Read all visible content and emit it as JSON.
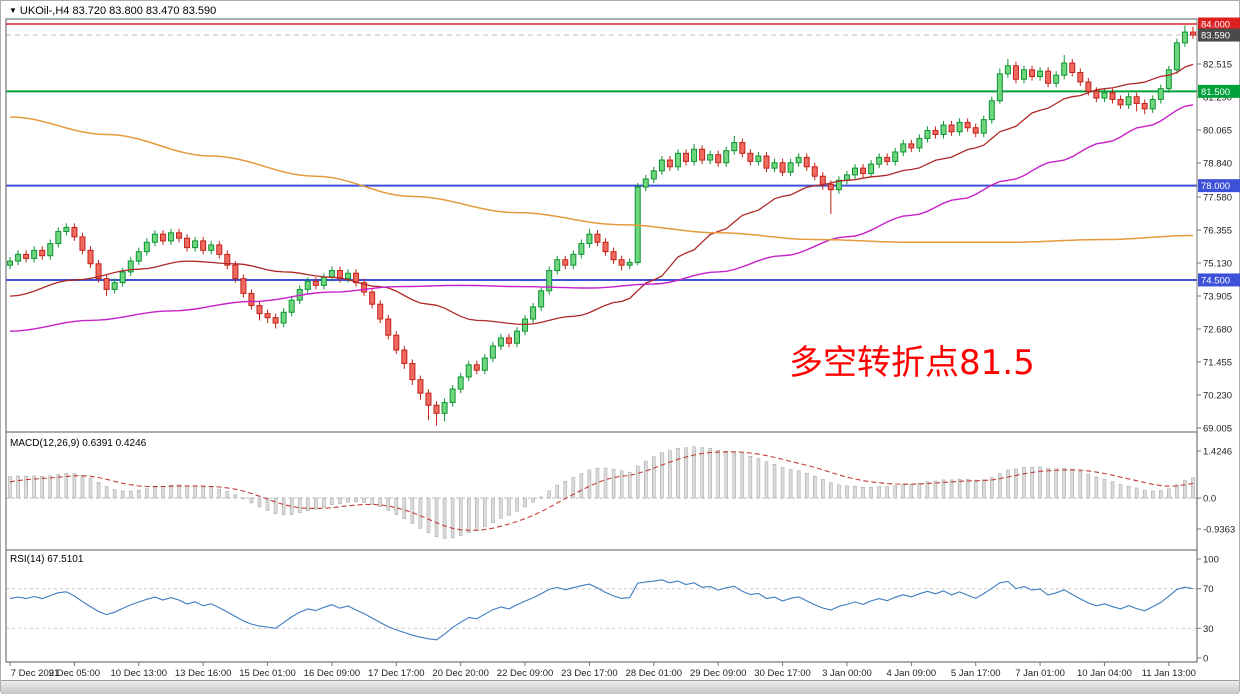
{
  "header": {
    "marker": "▼",
    "title": "UKOil-,H4 83.720 83.800 83.470 83.590"
  },
  "annotation": {
    "text": "多空转折点81.5",
    "color": "#ff0000"
  },
  "chart_data": {
    "type": "candlestick",
    "symbol": "UKOil-",
    "timeframe": "H4",
    "ohlc_display": {
      "open": "83.720",
      "high": "83.800",
      "low": "83.470",
      "close": "83.590"
    },
    "price_range": [
      68.9,
      84.25
    ],
    "grid": "off",
    "price_axis_labels": [
      "82.515",
      "81.290",
      "80.065",
      "78.840",
      "77.580",
      "76.355",
      "75.130",
      "73.905",
      "72.680",
      "71.455",
      "70.230",
      "69.005"
    ],
    "time_axis_labels": [
      "7 Dec 2021",
      "9 Dec 05:00",
      "10 Dec 13:00",
      "13 Dec 16:00",
      "15 Dec 01:00",
      "16 Dec 09:00",
      "17 Dec 17:00",
      "20 Dec 20:00",
      "22 Dec 09:00",
      "23 Dec 17:00",
      "28 Dec 01:00",
      "29 Dec 09:00",
      "30 Dec 17:00",
      "3 Jan 00:00",
      "4 Jan 09:00",
      "5 Jan 17:00",
      "7 Jan 01:00",
      "10 Jan 04:00",
      "11 Jan 13:00"
    ],
    "levels": [
      {
        "label": "84.000",
        "value": 84.0,
        "color": "#dd1f1f",
        "line_width": 1.4
      },
      {
        "label": "83.590",
        "value": 83.59,
        "color": "#4a4a4a",
        "line_width": 1,
        "dashed": true,
        "line_color": "#bdbdbd",
        "current": true
      },
      {
        "label": "81.500",
        "value": 81.5,
        "color": "#00a13a",
        "line_width": 2
      },
      {
        "label": "78.000",
        "value": 78.0,
        "color": "#3c50d8",
        "line_width": 2
      },
      {
        "label": "74.500",
        "value": 74.5,
        "color": "#3c50d8",
        "line_width": 2
      }
    ],
    "candle_colors": {
      "up_fill": "#6fd57e",
      "up_stroke": "#0f9432",
      "down_fill": "#ef6a60",
      "down_stroke": "#c32218"
    },
    "candles": [
      [
        75.05,
        75.35,
        74.9,
        75.2
      ],
      [
        75.2,
        75.6,
        75.05,
        75.45
      ],
      [
        75.45,
        75.6,
        75.15,
        75.3
      ],
      [
        75.3,
        75.75,
        75.15,
        75.6
      ],
      [
        75.6,
        75.75,
        75.25,
        75.4
      ],
      [
        75.4,
        76.0,
        75.25,
        75.85
      ],
      [
        75.85,
        76.45,
        75.7,
        76.3
      ],
      [
        76.3,
        76.6,
        76.15,
        76.45
      ],
      [
        76.45,
        76.6,
        75.95,
        76.1
      ],
      [
        76.1,
        76.25,
        75.45,
        75.6
      ],
      [
        75.6,
        75.75,
        74.95,
        75.1
      ],
      [
        75.1,
        75.25,
        74.4,
        74.55
      ],
      [
        74.55,
        74.7,
        73.9,
        74.15
      ],
      [
        74.15,
        74.55,
        74.0,
        74.4
      ],
      [
        74.4,
        74.95,
        74.25,
        74.8
      ],
      [
        74.8,
        75.35,
        74.65,
        75.2
      ],
      [
        75.2,
        75.7,
        75.05,
        75.55
      ],
      [
        75.55,
        76.05,
        75.4,
        75.9
      ],
      [
        75.9,
        76.35,
        75.75,
        76.2
      ],
      [
        76.2,
        76.35,
        75.8,
        75.95
      ],
      [
        75.95,
        76.4,
        75.8,
        76.25
      ],
      [
        76.25,
        76.4,
        75.9,
        76.05
      ],
      [
        76.05,
        76.2,
        75.55,
        75.7
      ],
      [
        75.7,
        76.1,
        75.55,
        75.95
      ],
      [
        75.95,
        76.1,
        75.45,
        75.6
      ],
      [
        75.6,
        75.95,
        75.45,
        75.8
      ],
      [
        75.8,
        75.95,
        75.3,
        75.45
      ],
      [
        75.45,
        75.6,
        74.9,
        75.05
      ],
      [
        75.05,
        75.2,
        74.4,
        74.55
      ],
      [
        74.55,
        74.7,
        73.85,
        74.0
      ],
      [
        74.0,
        74.15,
        73.4,
        73.55
      ],
      [
        73.55,
        73.7,
        73.0,
        73.25
      ],
      [
        73.25,
        73.4,
        72.9,
        73.1
      ],
      [
        73.1,
        73.25,
        72.7,
        72.9
      ],
      [
        72.9,
        73.45,
        72.75,
        73.3
      ],
      [
        73.3,
        73.9,
        73.15,
        73.75
      ],
      [
        73.75,
        74.3,
        73.6,
        74.15
      ],
      [
        74.15,
        74.6,
        74.0,
        74.45
      ],
      [
        74.45,
        74.6,
        74.15,
        74.3
      ],
      [
        74.3,
        74.75,
        74.15,
        74.6
      ],
      [
        74.6,
        75.0,
        74.45,
        74.85
      ],
      [
        74.85,
        75.0,
        74.4,
        74.55
      ],
      [
        74.55,
        74.9,
        74.4,
        74.75
      ],
      [
        74.75,
        74.9,
        74.25,
        74.4
      ],
      [
        74.4,
        74.55,
        73.9,
        74.05
      ],
      [
        74.05,
        74.2,
        73.45,
        73.6
      ],
      [
        73.6,
        73.75,
        72.9,
        73.05
      ],
      [
        73.05,
        73.2,
        72.3,
        72.45
      ],
      [
        72.45,
        72.6,
        71.75,
        71.9
      ],
      [
        71.9,
        72.05,
        71.2,
        71.4
      ],
      [
        71.4,
        71.55,
        70.6,
        70.8
      ],
      [
        70.8,
        70.95,
        70.05,
        70.3
      ],
      [
        70.3,
        70.45,
        69.3,
        69.85
      ],
      [
        69.85,
        70.0,
        69.1,
        69.55
      ],
      [
        69.55,
        70.1,
        69.25,
        69.95
      ],
      [
        69.95,
        70.6,
        69.8,
        70.45
      ],
      [
        70.45,
        71.05,
        70.3,
        70.9
      ],
      [
        70.9,
        71.5,
        70.75,
        71.35
      ],
      [
        71.35,
        71.5,
        71.0,
        71.15
      ],
      [
        71.15,
        71.75,
        71.0,
        71.6
      ],
      [
        71.6,
        72.2,
        71.45,
        72.05
      ],
      [
        72.05,
        72.5,
        71.9,
        72.35
      ],
      [
        72.35,
        72.5,
        72.0,
        72.15
      ],
      [
        72.15,
        72.75,
        72.0,
        72.6
      ],
      [
        72.6,
        73.2,
        72.45,
        73.05
      ],
      [
        73.05,
        73.65,
        72.9,
        73.5
      ],
      [
        73.5,
        74.25,
        73.35,
        74.1
      ],
      [
        74.1,
        75.0,
        73.95,
        74.85
      ],
      [
        74.85,
        75.4,
        74.7,
        75.25
      ],
      [
        75.25,
        75.4,
        74.9,
        75.05
      ],
      [
        75.05,
        75.6,
        74.9,
        75.45
      ],
      [
        75.45,
        76.0,
        75.3,
        75.85
      ],
      [
        75.85,
        76.4,
        75.7,
        76.2
      ],
      [
        76.2,
        76.35,
        75.75,
        75.9
      ],
      [
        75.9,
        76.05,
        75.4,
        75.55
      ],
      [
        75.55,
        75.7,
        75.1,
        75.25
      ],
      [
        75.25,
        75.4,
        74.85,
        75.05
      ],
      [
        75.05,
        75.3,
        74.9,
        75.15
      ],
      [
        75.15,
        78.1,
        75.05,
        77.95
      ],
      [
        77.95,
        78.4,
        77.8,
        78.25
      ],
      [
        78.25,
        78.7,
        78.1,
        78.55
      ],
      [
        78.55,
        79.1,
        78.4,
        78.95
      ],
      [
        78.95,
        79.1,
        78.55,
        78.7
      ],
      [
        78.7,
        79.35,
        78.55,
        79.2
      ],
      [
        79.2,
        79.35,
        78.75,
        78.9
      ],
      [
        78.9,
        79.55,
        78.75,
        79.35
      ],
      [
        79.35,
        79.5,
        78.8,
        78.95
      ],
      [
        78.95,
        79.3,
        78.8,
        79.15
      ],
      [
        79.15,
        79.3,
        78.7,
        78.85
      ],
      [
        78.85,
        79.45,
        78.7,
        79.3
      ],
      [
        79.3,
        79.85,
        79.15,
        79.6
      ],
      [
        79.6,
        79.75,
        79.05,
        79.2
      ],
      [
        79.2,
        79.35,
        78.75,
        78.9
      ],
      [
        78.9,
        79.25,
        78.75,
        79.1
      ],
      [
        79.1,
        79.25,
        78.5,
        78.65
      ],
      [
        78.65,
        79.0,
        78.5,
        78.85
      ],
      [
        78.85,
        79.0,
        78.35,
        78.5
      ],
      [
        78.5,
        79.0,
        78.35,
        78.85
      ],
      [
        78.85,
        79.2,
        78.7,
        79.05
      ],
      [
        79.05,
        79.2,
        78.55,
        78.7
      ],
      [
        78.7,
        78.85,
        78.2,
        78.35
      ],
      [
        78.35,
        78.5,
        77.85,
        78.05
      ],
      [
        78.05,
        78.2,
        76.95,
        77.85
      ],
      [
        77.85,
        78.35,
        77.7,
        78.2
      ],
      [
        78.2,
        78.55,
        78.05,
        78.4
      ],
      [
        78.4,
        78.8,
        78.25,
        78.65
      ],
      [
        78.65,
        78.8,
        78.3,
        78.45
      ],
      [
        78.45,
        78.95,
        78.3,
        78.8
      ],
      [
        78.8,
        79.2,
        78.65,
        79.05
      ],
      [
        79.05,
        79.2,
        78.75,
        78.9
      ],
      [
        78.9,
        79.4,
        78.75,
        79.25
      ],
      [
        79.25,
        79.7,
        79.1,
        79.55
      ],
      [
        79.55,
        79.7,
        79.25,
        79.4
      ],
      [
        79.4,
        79.9,
        79.25,
        79.75
      ],
      [
        79.75,
        80.2,
        79.6,
        80.05
      ],
      [
        80.05,
        80.2,
        79.75,
        79.9
      ],
      [
        79.9,
        80.4,
        79.75,
        80.25
      ],
      [
        80.25,
        80.4,
        79.85,
        80.0
      ],
      [
        80.0,
        80.5,
        79.85,
        80.35
      ],
      [
        80.35,
        80.5,
        80.0,
        80.15
      ],
      [
        80.15,
        80.3,
        79.8,
        79.95
      ],
      [
        79.95,
        80.6,
        79.8,
        80.45
      ],
      [
        80.45,
        81.3,
        80.3,
        81.15
      ],
      [
        81.15,
        82.35,
        81.05,
        82.15
      ],
      [
        82.15,
        82.7,
        82.0,
        82.45
      ],
      [
        82.45,
        82.6,
        81.8,
        81.95
      ],
      [
        81.95,
        82.45,
        81.8,
        82.3
      ],
      [
        82.3,
        82.45,
        81.9,
        82.05
      ],
      [
        82.05,
        82.4,
        81.9,
        82.25
      ],
      [
        82.25,
        82.4,
        81.65,
        81.8
      ],
      [
        81.8,
        82.25,
        81.65,
        82.1
      ],
      [
        82.1,
        82.85,
        81.95,
        82.55
      ],
      [
        82.55,
        82.7,
        82.05,
        82.2
      ],
      [
        82.2,
        82.35,
        81.7,
        81.85
      ],
      [
        81.85,
        82.0,
        81.35,
        81.5
      ],
      [
        81.5,
        81.65,
        81.1,
        81.25
      ],
      [
        81.25,
        81.6,
        81.1,
        81.45
      ],
      [
        81.45,
        81.6,
        81.05,
        81.2
      ],
      [
        81.2,
        81.35,
        80.85,
        81.0
      ],
      [
        81.0,
        81.45,
        80.85,
        81.3
      ],
      [
        81.3,
        81.45,
        80.75,
        81.05
      ],
      [
        81.05,
        81.2,
        80.65,
        80.85
      ],
      [
        80.85,
        81.35,
        80.7,
        81.2
      ],
      [
        81.2,
        81.75,
        81.05,
        81.6
      ],
      [
        81.6,
        82.45,
        81.45,
        82.3
      ],
      [
        82.3,
        83.45,
        82.15,
        83.3
      ],
      [
        83.3,
        83.95,
        83.15,
        83.7
      ],
      [
        83.7,
        83.9,
        83.45,
        83.59
      ]
    ],
    "ma_lines": [
      {
        "name": "ma-medium-red",
        "color": "#b02828",
        "width": 1.3,
        "anchors": [
          [
            0,
            73.9
          ],
          [
            8,
            74.5
          ],
          [
            16,
            74.9
          ],
          [
            22,
            75.2
          ],
          [
            28,
            75.1
          ],
          [
            34,
            74.8
          ],
          [
            40,
            74.6
          ],
          [
            46,
            74.25
          ],
          [
            52,
            73.6
          ],
          [
            58,
            73.0
          ],
          [
            64,
            72.85
          ],
          [
            70,
            73.15
          ],
          [
            76,
            73.7
          ],
          [
            80,
            74.5
          ],
          [
            84,
            75.5
          ],
          [
            88,
            76.3
          ],
          [
            92,
            77.0
          ],
          [
            96,
            77.6
          ],
          [
            100,
            78.0
          ],
          [
            104,
            78.2
          ],
          [
            108,
            78.35
          ],
          [
            112,
            78.6
          ],
          [
            116,
            79.0
          ],
          [
            120,
            79.4
          ],
          [
            124,
            80.1
          ],
          [
            128,
            80.8
          ],
          [
            132,
            81.3
          ],
          [
            136,
            81.6
          ],
          [
            140,
            81.8
          ],
          [
            144,
            82.1
          ],
          [
            147,
            82.5
          ]
        ]
      },
      {
        "name": "ma-slow-magenta",
        "color": "#c820c8",
        "width": 1.4,
        "anchors": [
          [
            0,
            72.6
          ],
          [
            10,
            73.0
          ],
          [
            20,
            73.35
          ],
          [
            30,
            73.7
          ],
          [
            40,
            74.05
          ],
          [
            48,
            74.25
          ],
          [
            56,
            74.3
          ],
          [
            64,
            74.25
          ],
          [
            72,
            74.2
          ],
          [
            80,
            74.35
          ],
          [
            88,
            74.8
          ],
          [
            96,
            75.4
          ],
          [
            104,
            76.1
          ],
          [
            112,
            76.9
          ],
          [
            118,
            77.5
          ],
          [
            124,
            78.2
          ],
          [
            130,
            78.9
          ],
          [
            136,
            79.6
          ],
          [
            141,
            80.2
          ],
          [
            147,
            81.0
          ]
        ]
      },
      {
        "name": "ma-trend-orange",
        "color": "#e69a3c",
        "width": 1.5,
        "anchors": [
          [
            0,
            80.55
          ],
          [
            12,
            79.9
          ],
          [
            25,
            79.1
          ],
          [
            38,
            78.35
          ],
          [
            50,
            77.6
          ],
          [
            63,
            77.0
          ],
          [
            76,
            76.55
          ],
          [
            88,
            76.25
          ],
          [
            100,
            76.0
          ],
          [
            112,
            75.9
          ],
          [
            124,
            75.9
          ],
          [
            136,
            76.0
          ],
          [
            147,
            76.15
          ]
        ]
      }
    ],
    "indicators": {
      "macd": {
        "label_full": "MACD(12,26,9) 0.6391 0.4246",
        "main_value": "0.6391",
        "signal_value": "0.4246",
        "scale_labels": [
          "1.4246",
          "0.0",
          "-0.9363"
        ],
        "hist_color": "#dcdcdc",
        "hist_stroke": "#9e9e9e",
        "signal_color": "#c43c3c"
      },
      "rsi": {
        "label_full": "RSI(14) 67.5101",
        "value": "67.5101",
        "scale_labels": [
          "100",
          "70",
          "30",
          "0"
        ],
        "level_lines": [
          70,
          30
        ],
        "line_color": "#3f7cc0"
      }
    }
  }
}
